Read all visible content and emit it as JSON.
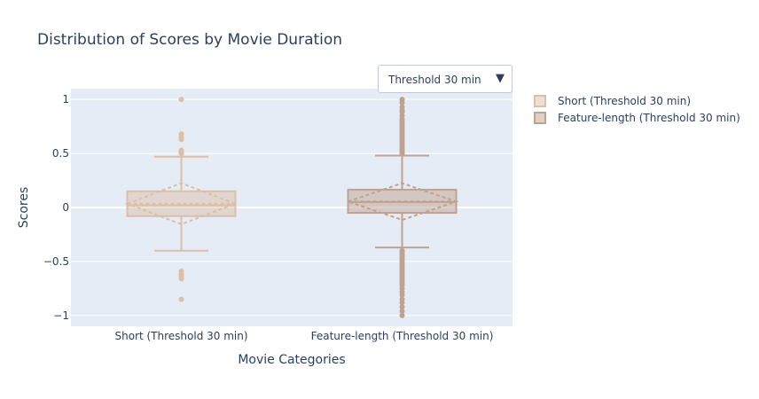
{
  "dropdown": {
    "selected": "Threshold 30 min",
    "arrow_icon": "triangle-down-icon"
  },
  "chart_data": {
    "type": "box",
    "title": "Distribution of Scores by Movie Duration",
    "xlabel": "Movie Categories",
    "ylabel": "Scores",
    "ylim": [
      -1.1,
      1.1
    ],
    "yticks": [
      -1,
      -0.5,
      0,
      0.5,
      1
    ],
    "ytick_labels": [
      "−1",
      "−0.5",
      "0",
      "0.5",
      "1"
    ],
    "categories": [
      "Short (Threshold 30 min)",
      "Feature-length (Threshold 30 min)"
    ],
    "legend_position": "right",
    "series": [
      {
        "name": "Short (Threshold 30 min)",
        "color": "#dcbfa8",
        "lowerfence": -0.4,
        "q1": -0.08,
        "median": 0.02,
        "q3": 0.15,
        "upperfence": 0.47,
        "mean": 0.035,
        "sd": 0.19,
        "outliers": [
          1.0,
          0.68,
          0.65,
          0.63,
          0.53,
          0.51,
          0.5,
          -0.59,
          -0.62,
          -0.64,
          -0.66,
          -0.85
        ]
      },
      {
        "name": "Feature-length (Threshold 30 min)",
        "color": "#bfa28f",
        "lowerfence": -0.37,
        "q1": -0.05,
        "median": 0.05,
        "q3": 0.165,
        "upperfence": 0.48,
        "mean": 0.055,
        "sd": 0.17,
        "outliers": [
          1.0,
          0.97,
          0.93,
          0.9,
          0.88,
          0.85,
          0.82,
          0.8,
          0.78,
          0.76,
          0.74,
          0.72,
          0.7,
          0.68,
          0.66,
          0.64,
          0.62,
          0.6,
          0.58,
          0.56,
          0.54,
          0.52,
          0.5,
          -0.4,
          -0.42,
          -0.44,
          -0.46,
          -0.48,
          -0.5,
          -0.52,
          -0.54,
          -0.56,
          -0.58,
          -0.6,
          -0.62,
          -0.64,
          -0.66,
          -0.68,
          -0.7,
          -0.72,
          -0.75,
          -0.78,
          -0.81,
          -0.85,
          -0.88,
          -0.92,
          -0.96,
          -1.0
        ]
      }
    ]
  }
}
